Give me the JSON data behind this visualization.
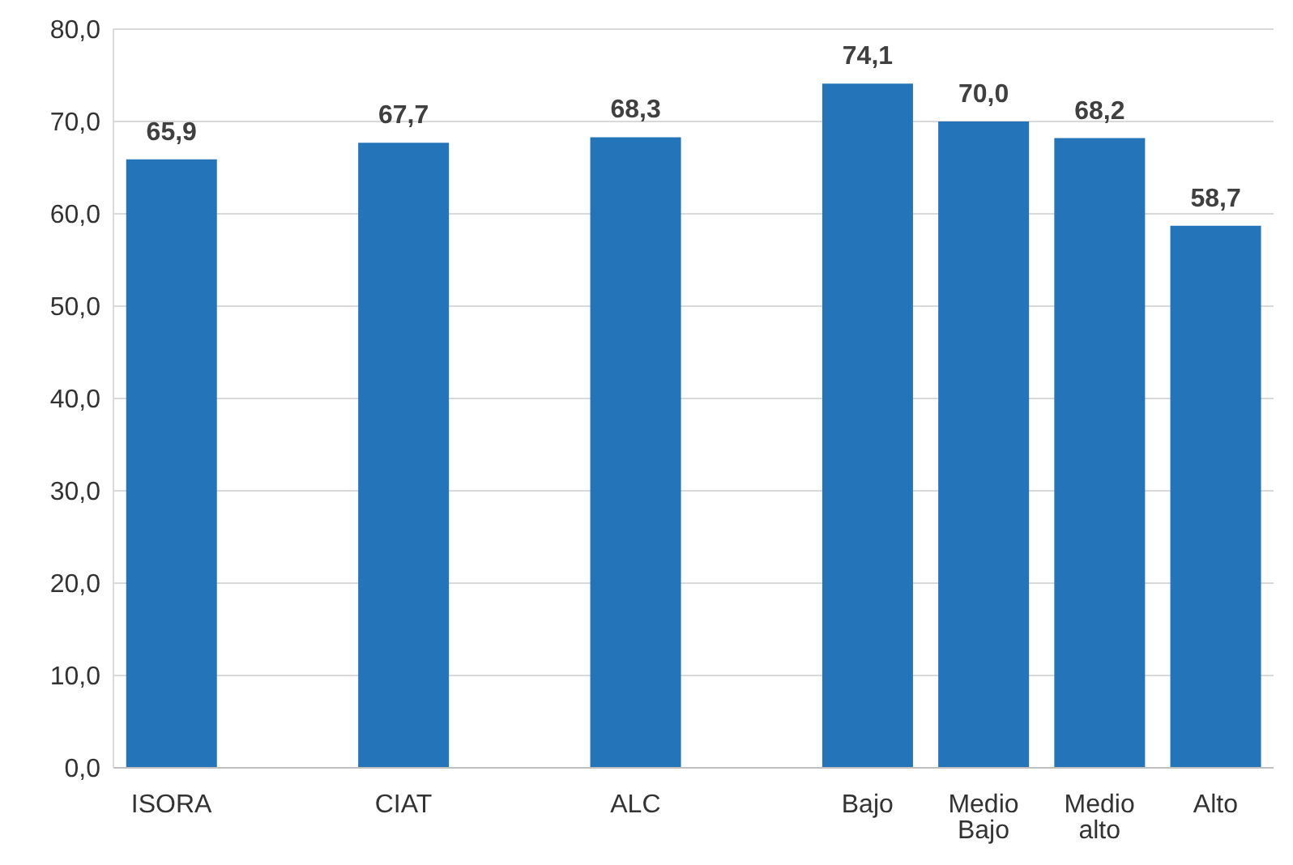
{
  "chart_data": {
    "type": "bar",
    "categories": [
      "ISORA",
      null,
      "CIAT",
      null,
      "ALC",
      null,
      "Bajo",
      "Medio Bajo",
      "Medio alto",
      "Alto"
    ],
    "values": [
      65.9,
      null,
      67.7,
      null,
      68.3,
      null,
      74.1,
      70.0,
      68.2,
      58.7
    ],
    "value_labels": [
      "65,9",
      null,
      "67,7",
      null,
      "68,3",
      null,
      "74,1",
      "70,0",
      "68,2",
      "58,7"
    ],
    "color": "#2474b9",
    "ylim": [
      0,
      80
    ],
    "yticks": [
      {
        "value": 0,
        "label": "0,0"
      },
      {
        "value": 10,
        "label": "10,0"
      },
      {
        "value": 20,
        "label": "20,0"
      },
      {
        "value": 30,
        "label": "30,0"
      },
      {
        "value": 40,
        "label": "40,0"
      },
      {
        "value": 50,
        "label": "50,0"
      },
      {
        "value": 60,
        "label": "60,0"
      },
      {
        "value": 70,
        "label": "70,0"
      },
      {
        "value": 80,
        "label": "80,0"
      }
    ],
    "grid": "y",
    "legend": false
  }
}
